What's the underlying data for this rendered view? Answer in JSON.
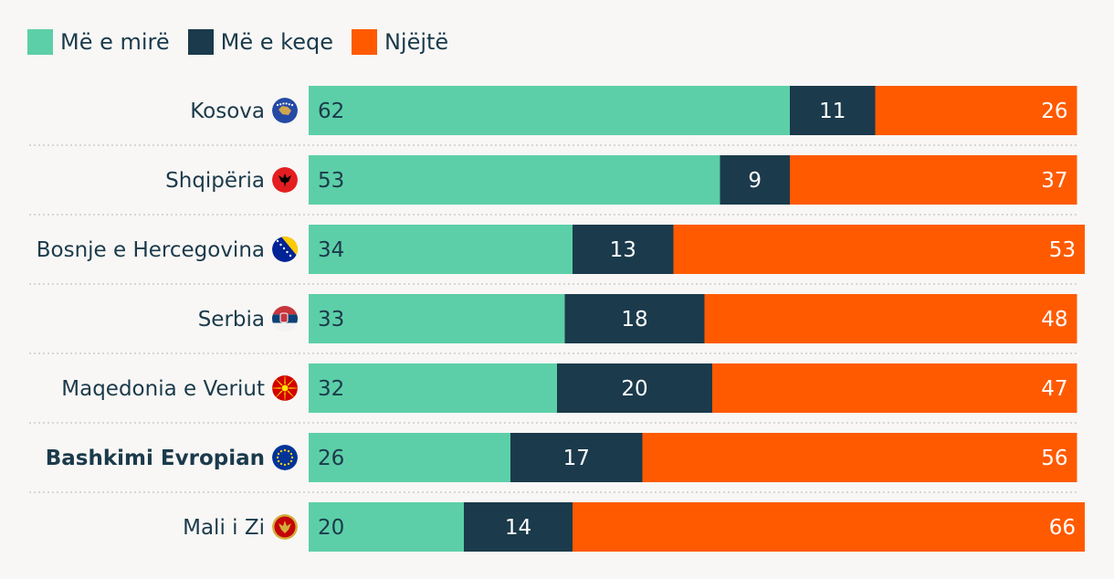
{
  "legend": [
    {
      "name": "Më e mirë",
      "color": "#5ccfa8"
    },
    {
      "name": "Më e keqe",
      "color": "#1b3a4b"
    },
    {
      "name": "Njëjtë",
      "color": "#ff5a00"
    }
  ],
  "chart_data": {
    "type": "bar",
    "orientation": "horizontal",
    "stacked": true,
    "legend_position": "top-left",
    "categories": [
      "Kosova",
      "Shqipëria",
      "Bosnje e Hercegovina",
      "Serbia",
      "Maqedonia e Veriut",
      "Bashkimi Evropian",
      "Mali i Zi"
    ],
    "highlight_category": "Bashkimi Evropian",
    "flag_icons": [
      "kosovo-flag-icon",
      "albania-flag-icon",
      "bosnia-flag-icon",
      "serbia-flag-icon",
      "north-macedonia-flag-icon",
      "eu-flag-icon",
      "montenegro-flag-icon"
    ],
    "series": [
      {
        "name": "Më e mirë",
        "color": "#5ccfa8",
        "values": [
          62,
          53,
          34,
          33,
          32,
          26,
          20
        ]
      },
      {
        "name": "Më e keqe",
        "color": "#1b3a4b",
        "values": [
          11,
          9,
          13,
          18,
          20,
          17,
          14
        ]
      },
      {
        "name": "Njëjtë",
        "color": "#ff5a00",
        "values": [
          26,
          37,
          53,
          48,
          47,
          56,
          66
        ]
      }
    ]
  }
}
